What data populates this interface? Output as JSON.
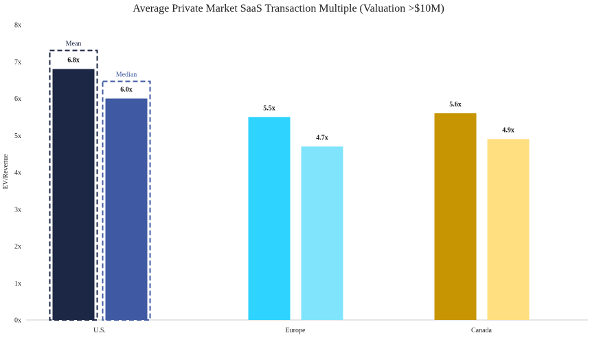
{
  "chart_data": {
    "type": "bar",
    "title": "Average Private Market SaaS Transaction Multiple (Valuation >$10M)",
    "xlabel": "",
    "ylabel": "EV/Revenue",
    "ylim": [
      0,
      8
    ],
    "yticks": [
      "0x",
      "1x",
      "2x",
      "3x",
      "4x",
      "5x",
      "6x",
      "7x",
      "8x"
    ],
    "categories": [
      "U.S.",
      "Europe",
      "Canada"
    ],
    "series": [
      {
        "name": "Mean",
        "values": [
          6.8,
          5.5,
          5.6
        ],
        "labels": [
          "6.8x",
          "5.5x",
          "5.6x"
        ]
      },
      {
        "name": "Median",
        "values": [
          6.0,
          4.7,
          4.9
        ],
        "labels": [
          "6.0x",
          "4.7x",
          "4.9x"
        ]
      }
    ],
    "colors": [
      [
        "#1c2745",
        "#3f5aa3"
      ],
      [
        "#2ed3ff",
        "#80e4fd"
      ],
      [
        "#c79502",
        "#ffdf7f"
      ]
    ],
    "legend_text_colors": [
      "#1c2745",
      "#3f5aa3"
    ],
    "legend_placement": "dashed boxes around U.S. bars"
  }
}
